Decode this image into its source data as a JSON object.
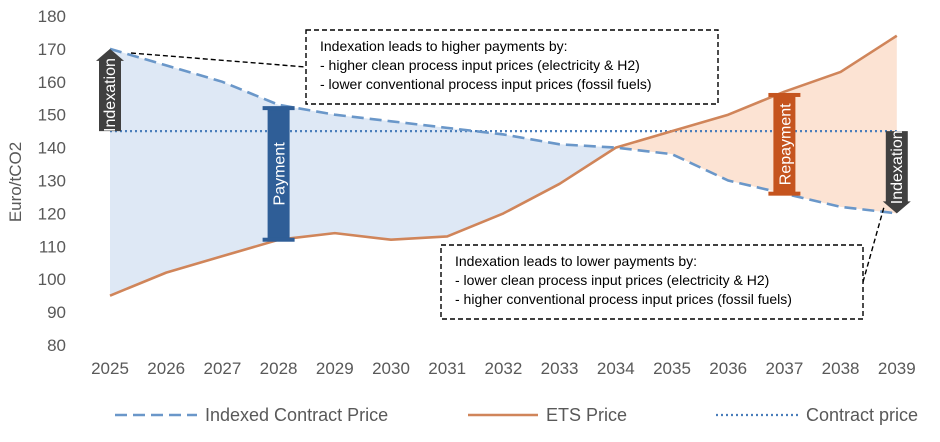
{
  "chart_data": {
    "type": "line",
    "title": "",
    "xlabel": "",
    "ylabel": "Euro/tCO2",
    "ylim": [
      80,
      180
    ],
    "yticks": [
      80,
      90,
      100,
      110,
      120,
      130,
      140,
      150,
      160,
      170,
      180
    ],
    "categories": [
      "2025",
      "2026",
      "2027",
      "2028",
      "2029",
      "2030",
      "2031",
      "2032",
      "2033",
      "2034",
      "2035",
      "2036",
      "2037",
      "2038",
      "2039"
    ],
    "grid": false,
    "legend_position": "bottom",
    "series": [
      {
        "name": "Indexed Contract Price",
        "style": "dashed",
        "color": "#6A97C9",
        "values": [
          170,
          165,
          160,
          153,
          150,
          148,
          146,
          144,
          141,
          140,
          138,
          130,
          126,
          122,
          120
        ]
      },
      {
        "name": "ETS Price",
        "style": "solid",
        "color": "#D0855A",
        "values": [
          95,
          102,
          107,
          112,
          114,
          112,
          113,
          120,
          129,
          140,
          145,
          150,
          157,
          163,
          174
        ]
      },
      {
        "name": "Contract price",
        "style": "dotted",
        "color": "#4A7EBB",
        "values": [
          145,
          145,
          145,
          145,
          145,
          145,
          145,
          145,
          145,
          145,
          145,
          145,
          145,
          145,
          145
        ]
      }
    ],
    "bars": [
      {
        "label": "Indexation",
        "category": "2025",
        "from": 145,
        "to": 170,
        "color": "#404040",
        "arrow": "up"
      },
      {
        "label": "Payment",
        "category": "2028",
        "from": 112,
        "to": 152,
        "color": "#2F5E97"
      },
      {
        "label": "Repayment",
        "category": "2037",
        "from": 126,
        "to": 156,
        "color": "#C5541E"
      },
      {
        "label": "Indexation",
        "category": "2039",
        "from": 145,
        "to": 120,
        "color": "#404040",
        "arrow": "down"
      }
    ],
    "annotations": [
      {
        "id": "higher",
        "lines": [
          "Indexation leads to higher payments by:",
          "- higher clean process input prices (electricity & H2)",
          "- lower conventional process input prices (fossil fuels)"
        ]
      },
      {
        "id": "lower",
        "lines": [
          "Indexation leads to lower payments by:",
          "- lower clean process input prices (electricity & H2)",
          "- higher conventional process input prices (fossil fuels)"
        ]
      }
    ],
    "fill_colors": {
      "payment_area": "#DEE8F5",
      "repayment_area": "#FCE3D3"
    }
  }
}
